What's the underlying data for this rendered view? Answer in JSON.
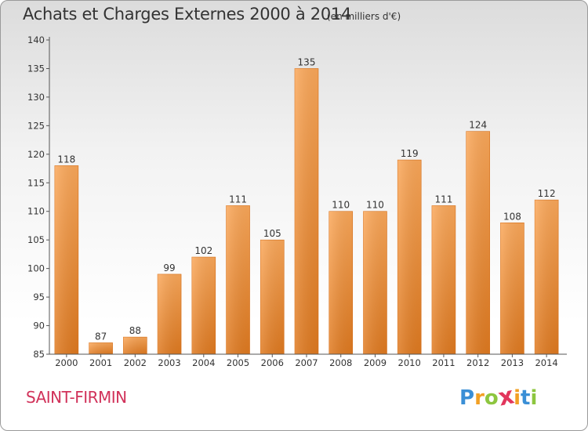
{
  "header": {
    "title": "Achats et Charges Externes 2000 à 2014",
    "subtitle": "(en milliers d'€)"
  },
  "footer": {
    "place": "SAINT-FIRMIN",
    "logo_letters": [
      "P",
      "r",
      "o",
      "x",
      "i",
      "t",
      "i"
    ],
    "logo_colors": [
      "#3a8fd6",
      "#f2a024",
      "#8dc63f",
      "#e2365c",
      "#f2a024",
      "#3a8fd6",
      "#8dc63f"
    ]
  },
  "chart_data": {
    "type": "bar",
    "categories": [
      "2000",
      "2001",
      "2002",
      "2003",
      "2004",
      "2005",
      "2006",
      "2007",
      "2008",
      "2009",
      "2010",
      "2011",
      "2012",
      "2013",
      "2014"
    ],
    "values": [
      118,
      87,
      88,
      99,
      102,
      111,
      105,
      135,
      110,
      110,
      119,
      111,
      124,
      108,
      112
    ],
    "title": "Achats et Charges Externes 2000 à 2014",
    "subtitle": "(en milliers d'€)",
    "xlabel": "",
    "ylabel": "",
    "ylim": [
      85,
      140
    ],
    "yticks": [
      85,
      90,
      95,
      100,
      105,
      110,
      115,
      120,
      125,
      130,
      135,
      140
    ],
    "grid": false,
    "data_labels": true,
    "bar_color_top": "#fba85a",
    "bar_color_bottom": "#e07a20",
    "axis_color": "#555555"
  }
}
